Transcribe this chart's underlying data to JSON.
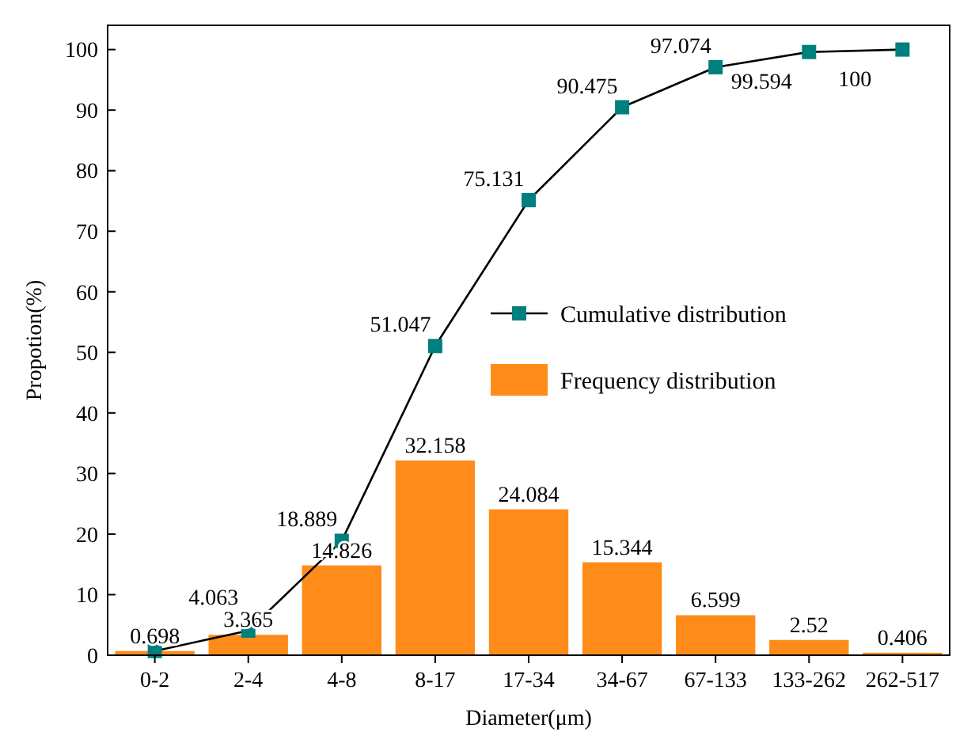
{
  "chart_data": {
    "type": "bar",
    "xlabel": "Diameter(μm)",
    "ylabel": "Propotion(%)",
    "categories": [
      "0-2",
      "2-4",
      "4-8",
      "8-17",
      "17-34",
      "34-67",
      "67-133",
      "133-262",
      "262-517"
    ],
    "series": [
      {
        "type": "line",
        "name": "Cumulative distribution",
        "color": "#007f7f",
        "marker": "square",
        "values": [
          0.698,
          4.063,
          18.889,
          51.047,
          75.131,
          90.475,
          97.074,
          99.594,
          100
        ],
        "value_labels": [
          null,
          "4.063",
          "18.889",
          "51.047",
          "75.131",
          "90.475",
          "97.074",
          "99.594",
          "100"
        ]
      },
      {
        "name": "Frequency distribution",
        "color": "#ff8c1a",
        "values": [
          0.698,
          3.365,
          14.826,
          32.158,
          24.084,
          15.344,
          6.599,
          2.52,
          0.406
        ],
        "value_labels": [
          "0.698",
          "3.365",
          "14.826",
          "32.158",
          "24.084",
          "15.344",
          "6.599",
          "2.52",
          "0.406"
        ]
      }
    ],
    "ylim": [
      0,
      104
    ],
    "yticks": [
      0,
      10,
      20,
      30,
      40,
      50,
      60,
      70,
      80,
      90,
      100
    ],
    "grid": false,
    "legend": "right"
  }
}
